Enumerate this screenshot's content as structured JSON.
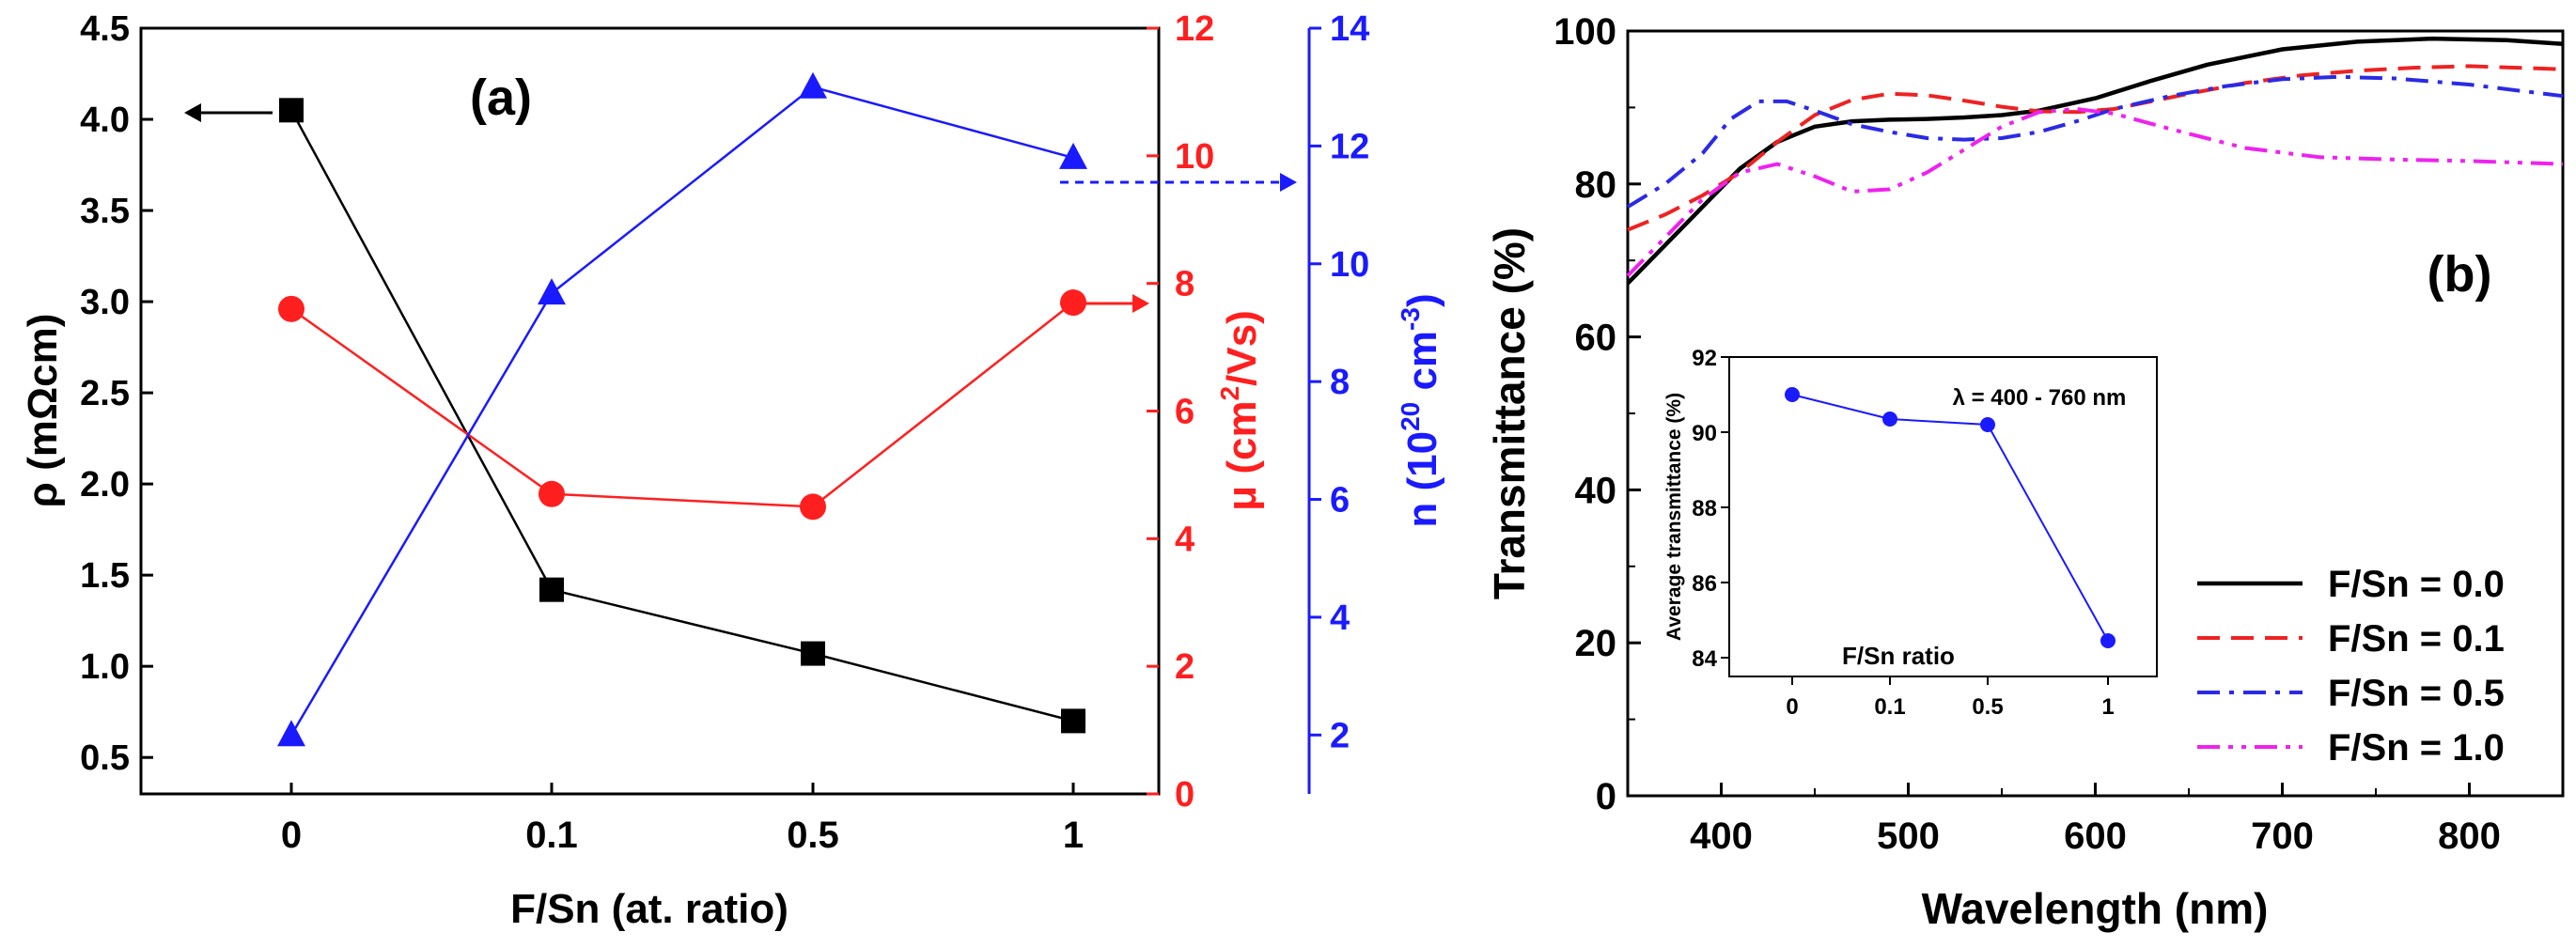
{
  "colors": {
    "black": "#000000",
    "red": "#ff1f1f",
    "blue": "#1a1aff",
    "blue_dash": "#2a2ae6",
    "magenta": "#ee22ee",
    "red_dash": "#ee2222"
  },
  "chart_data": [
    {
      "panel_label": "(a)",
      "type": "line",
      "categories": [
        "0",
        "0.1",
        "0.5",
        "1"
      ],
      "xlabel": "F/Sn (at. ratio)",
      "axes": {
        "rho": {
          "label_main": "ρ (mΩcm)",
          "lim": [
            0.3,
            4.5
          ],
          "ticks": [
            "0.5",
            "1.0",
            "1.5",
            "2.0",
            "2.5",
            "3.0",
            "3.5",
            "4.0",
            "4.5"
          ],
          "color": "#000000"
        },
        "mu": {
          "label_main": "μ (cm",
          "label_sup": "2",
          "label_tail": "/Vs)",
          "lim": [
            0,
            12
          ],
          "ticks": [
            "0",
            "2",
            "4",
            "6",
            "8",
            "10",
            "12"
          ],
          "color": "#ff1f1f"
        },
        "n": {
          "label_main": "n (10",
          "label_sup": "20",
          "label_mid": " cm",
          "label_sup2": "-3",
          "label_tail": ")",
          "lim": [
            1,
            14
          ],
          "ticks": [
            "2",
            "4",
            "6",
            "8",
            "10",
            "12",
            "14"
          ],
          "color": "#1a1aff"
        }
      },
      "series": [
        {
          "name": "rho",
          "axis": "rho",
          "marker": "square",
          "values": [
            4.05,
            1.42,
            1.07,
            0.7
          ]
        },
        {
          "name": "mu",
          "axis": "mu",
          "marker": "circle",
          "values": [
            7.6,
            4.7,
            4.5,
            7.7
          ]
        },
        {
          "name": "n",
          "axis": "n",
          "marker": "triangle",
          "values": [
            2.0,
            9.5,
            13.0,
            11.8
          ]
        }
      ]
    },
    {
      "panel_label": "(b)",
      "type": "line",
      "xlabel": "Wavelength (nm)",
      "ylabel": "Transmittance (%)",
      "xlim": [
        350,
        850
      ],
      "ylim": [
        0,
        100
      ],
      "xticks": [
        "400",
        "500",
        "600",
        "700",
        "800"
      ],
      "yticks": [
        "0",
        "20",
        "40",
        "60",
        "80",
        "100"
      ],
      "legend_position": "bottom-right",
      "series": [
        {
          "name": "F/Sn = 0.0",
          "style": "solid",
          "x": [
            350,
            370,
            390,
            410,
            430,
            450,
            470,
            490,
            510,
            530,
            550,
            570,
            600,
            630,
            660,
            700,
            740,
            780,
            820,
            850
          ],
          "y": [
            67,
            72,
            77,
            82,
            85.5,
            87.5,
            88.2,
            88.4,
            88.5,
            88.7,
            89,
            89.6,
            91.2,
            93.5,
            95.6,
            97.6,
            98.6,
            99,
            98.8,
            98.3
          ]
        },
        {
          "name": "F/Sn = 0.1",
          "style": "dash",
          "x": [
            350,
            370,
            390,
            410,
            430,
            450,
            470,
            490,
            510,
            530,
            550,
            570,
            590,
            610,
            630,
            650,
            680,
            710,
            740,
            770,
            800,
            850
          ],
          "y": [
            74,
            76,
            78.5,
            81.5,
            85.5,
            89,
            91,
            91.8,
            91.6,
            90.9,
            90.1,
            89.5,
            89.4,
            89.8,
            90.8,
            91.8,
            93.2,
            94.2,
            94.8,
            95.2,
            95.4,
            95
          ]
        },
        {
          "name": "F/Sn = 0.5",
          "style": "dashdot",
          "x": [
            350,
            370,
            390,
            405,
            420,
            435,
            450,
            470,
            490,
            510,
            530,
            550,
            570,
            590,
            610,
            640,
            670,
            700,
            730,
            760,
            800,
            850
          ],
          "y": [
            77,
            80,
            84,
            88.5,
            90.8,
            90.8,
            89.6,
            87.8,
            86.8,
            86,
            85.8,
            86,
            86.8,
            88.2,
            89.8,
            91.5,
            92.8,
            93.7,
            94,
            93.8,
            93,
            91.5
          ]
        },
        {
          "name": "F/Sn = 1.0",
          "style": "dashdotdot",
          "x": [
            350,
            370,
            390,
            410,
            430,
            450,
            470,
            490,
            510,
            530,
            550,
            570,
            590,
            610,
            640,
            680,
            720,
            760,
            800,
            850
          ],
          "y": [
            68,
            73,
            78,
            81.5,
            82.6,
            81,
            79,
            79.3,
            81.5,
            84.5,
            87.5,
            89.4,
            89.8,
            89.2,
            87.2,
            84.7,
            83.5,
            83.2,
            83,
            82.6
          ]
        }
      ]
    },
    {
      "panel_label": "inset",
      "type": "line",
      "categories": [
        "0",
        "0.1",
        "0.5",
        "1"
      ],
      "values": [
        91.0,
        90.35,
        90.2,
        84.45
      ],
      "xlabel": "F/Sn ratio",
      "ylabel": "Average transmittance (%)",
      "ylim": [
        83.5,
        92
      ],
      "yticks": [
        "84",
        "86",
        "88",
        "90",
        "92"
      ],
      "annotation": "λ = 400 - 760 nm"
    }
  ]
}
